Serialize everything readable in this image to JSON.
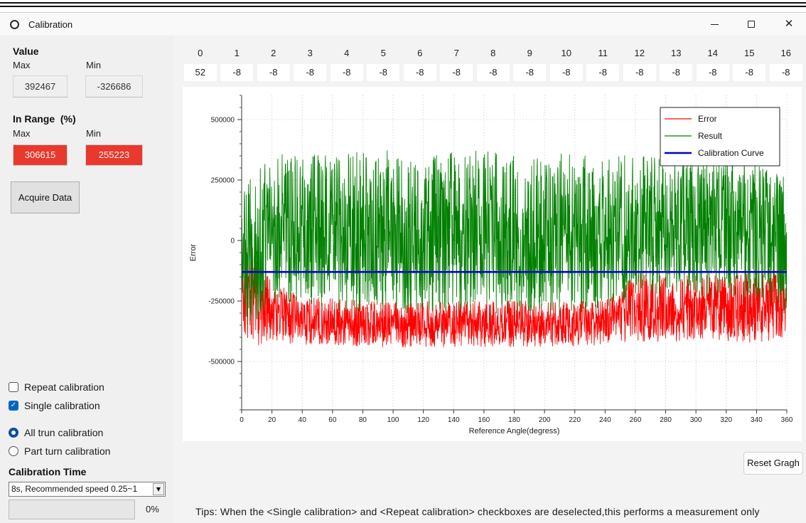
{
  "window": {
    "title": "Calibration",
    "icons": {
      "app": "calibration-ring-icon",
      "minimize": "minimize-icon",
      "maximize": "maximize-icon",
      "close": "close-icon"
    }
  },
  "value_group": {
    "title": "Value",
    "max_label": "Max",
    "min_label": "Min",
    "max_value": "392467",
    "min_value": "-326686"
  },
  "in_range_group": {
    "title": "In Range  (%)",
    "max_label": "Max",
    "min_label": "Min",
    "max_value": "306615",
    "min_value": "255223",
    "alert_color": "#e8392c"
  },
  "acquire_button": {
    "label": "Acquire Data"
  },
  "calibration_mode": {
    "repeat": {
      "label": "Repeat calibration",
      "checked": false
    },
    "single": {
      "label": "Single calibration",
      "checked": true
    }
  },
  "turn_mode": {
    "all_turn": {
      "label": "All trun calibration",
      "selected": true
    },
    "part_turn": {
      "label": "Part turn calibration",
      "selected": false
    }
  },
  "calibration_time": {
    "title": "Calibration Time",
    "selected": "8s, Recommended speed 0.25~1",
    "icon": "dropdown-arrow-icon"
  },
  "progress": {
    "value": 0,
    "label": "0%"
  },
  "channels": {
    "indices": [
      "0",
      "1",
      "2",
      "3",
      "4",
      "5",
      "6",
      "7",
      "8",
      "9",
      "10",
      "11",
      "12",
      "13",
      "14",
      "15",
      "16"
    ],
    "values": [
      "52",
      "-8",
      "-8",
      "-8",
      "-8",
      "-8",
      "-8",
      "-8",
      "-8",
      "-8",
      "-8",
      "-8",
      "-8",
      "-8",
      "-8",
      "-8",
      "-8"
    ]
  },
  "chart_data": {
    "type": "line",
    "title": "",
    "xlabel": "Reference Angle(degress)",
    "ylabel": "Error",
    "xlim": [
      0,
      360
    ],
    "ylim": [
      -700000,
      600000
    ],
    "xticks": [
      0,
      20,
      40,
      60,
      80,
      100,
      120,
      140,
      160,
      180,
      200,
      220,
      240,
      260,
      280,
      300,
      320,
      340,
      360
    ],
    "yticks": [
      -500000,
      -250000,
      0,
      250000,
      500000
    ],
    "grid": true,
    "legend_position": "top-right",
    "series": [
      {
        "name": "Error",
        "color": "#ff0000",
        "x": [
          0,
          20,
          40,
          60,
          80,
          100,
          120,
          140,
          160,
          180,
          200,
          220,
          240,
          260,
          280,
          300,
          320,
          340,
          360
        ],
        "upper": [
          50000,
          -170000,
          -230000,
          -240000,
          -250000,
          -250000,
          -250000,
          -250000,
          -250000,
          -250000,
          -250000,
          -250000,
          -250000,
          -130000,
          -140000,
          -130000,
          -150000,
          -130000,
          -60000
        ],
        "lower": [
          -450000,
          -420000,
          -430000,
          -430000,
          -440000,
          -440000,
          -440000,
          -440000,
          -440000,
          -440000,
          -440000,
          -440000,
          -430000,
          -420000,
          -420000,
          -410000,
          -420000,
          -430000,
          -400000
        ]
      },
      {
        "name": "Result",
        "color": "#008000",
        "x": [
          0,
          20,
          40,
          60,
          80,
          100,
          120,
          140,
          160,
          180,
          200,
          220,
          240,
          260,
          280,
          300,
          320,
          340,
          360
        ],
        "upper": [
          220000,
          360000,
          350000,
          360000,
          380000,
          370000,
          360000,
          370000,
          370000,
          350000,
          360000,
          360000,
          360000,
          350000,
          340000,
          330000,
          340000,
          330000,
          290000
        ],
        "lower": [
          -400000,
          -250000,
          -260000,
          -290000,
          -300000,
          -300000,
          -300000,
          -300000,
          -300000,
          -300000,
          -300000,
          -300000,
          -290000,
          -220000,
          -220000,
          -230000,
          -230000,
          -240000,
          -320000
        ]
      },
      {
        "name": "Calibration Curve",
        "color": "#0000cd",
        "x": [
          0,
          360
        ],
        "values": [
          -130000,
          -130000
        ]
      }
    ]
  },
  "reset_button": {
    "label": "Reset Gragh"
  },
  "tips": "Tips: When the <Single calibration> and <Repeat calibration> checkboxes are deselected,this performs a measurement only",
  "accent_color": "#0067c0"
}
